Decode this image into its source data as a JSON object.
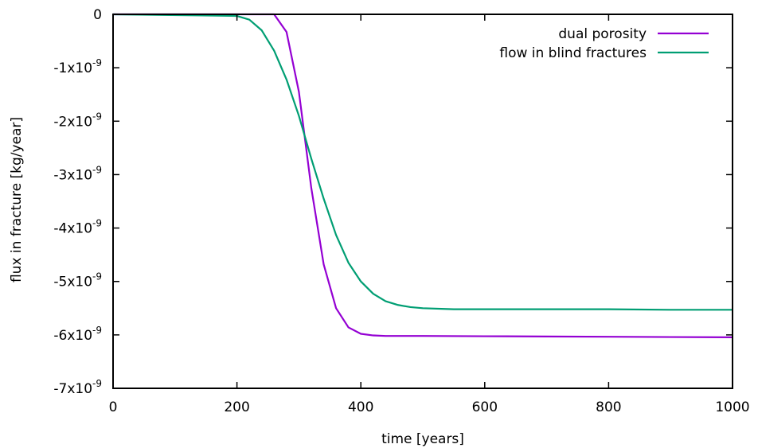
{
  "chart_data": {
    "type": "line",
    "xlabel": "time [years]",
    "ylabel": "flux in fracture [kg/year]",
    "xlim": [
      0,
      1000
    ],
    "ylim": [
      -7e-09,
      0
    ],
    "x_ticks": [
      {
        "value": 0,
        "label": "0"
      },
      {
        "value": 200,
        "label": "200"
      },
      {
        "value": 400,
        "label": "400"
      },
      {
        "value": 600,
        "label": "600"
      },
      {
        "value": 800,
        "label": "800"
      },
      {
        "value": 1000,
        "label": "1000"
      }
    ],
    "y_ticks": [
      {
        "value": 0,
        "base": "0",
        "exp": ""
      },
      {
        "value": -1e-09,
        "base": "-1x10",
        "exp": "-9"
      },
      {
        "value": -2e-09,
        "base": "-2x10",
        "exp": "-9"
      },
      {
        "value": -3e-09,
        "base": "-3x10",
        "exp": "-9"
      },
      {
        "value": -4e-09,
        "base": "-4x10",
        "exp": "-9"
      },
      {
        "value": -5e-09,
        "base": "-5x10",
        "exp": "-9"
      },
      {
        "value": -6e-09,
        "base": "-6x10",
        "exp": "-9"
      },
      {
        "value": -7e-09,
        "base": "-7x10",
        "exp": "-9"
      }
    ],
    "grid": false,
    "legend_position": "top-right",
    "series": [
      {
        "name": "dual porosity",
        "color": "#9400d3",
        "points": [
          [
            0,
            0
          ],
          [
            240,
            0
          ],
          [
            260,
            0
          ],
          [
            280,
            -3.3e-10
          ],
          [
            300,
            -1.45e-09
          ],
          [
            320,
            -3.25e-09
          ],
          [
            340,
            -4.68e-09
          ],
          [
            360,
            -5.5e-09
          ],
          [
            380,
            -5.86e-09
          ],
          [
            400,
            -5.98e-09
          ],
          [
            420,
            -6.01e-09
          ],
          [
            440,
            -6.02e-09
          ],
          [
            500,
            -6.02e-09
          ],
          [
            600,
            -6.025e-09
          ],
          [
            700,
            -6.03e-09
          ],
          [
            800,
            -6.035e-09
          ],
          [
            900,
            -6.04e-09
          ],
          [
            1000,
            -6.045e-09
          ]
        ]
      },
      {
        "name": "flow in blind fractures",
        "color": "#009e73",
        "points": [
          [
            0,
            0
          ],
          [
            200,
            -3e-11
          ],
          [
            220,
            -1e-10
          ],
          [
            240,
            -3e-10
          ],
          [
            260,
            -6.8e-10
          ],
          [
            280,
            -1.22e-09
          ],
          [
            300,
            -1.9e-09
          ],
          [
            320,
            -2.7e-09
          ],
          [
            340,
            -3.45e-09
          ],
          [
            360,
            -4.13e-09
          ],
          [
            380,
            -4.65e-09
          ],
          [
            400,
            -5e-09
          ],
          [
            420,
            -5.23e-09
          ],
          [
            440,
            -5.37e-09
          ],
          [
            460,
            -5.44e-09
          ],
          [
            480,
            -5.48e-09
          ],
          [
            500,
            -5.5e-09
          ],
          [
            550,
            -5.52e-09
          ],
          [
            600,
            -5.52e-09
          ],
          [
            700,
            -5.52e-09
          ],
          [
            800,
            -5.52e-09
          ],
          [
            900,
            -5.53e-09
          ],
          [
            1000,
            -5.53e-09
          ]
        ]
      }
    ]
  }
}
